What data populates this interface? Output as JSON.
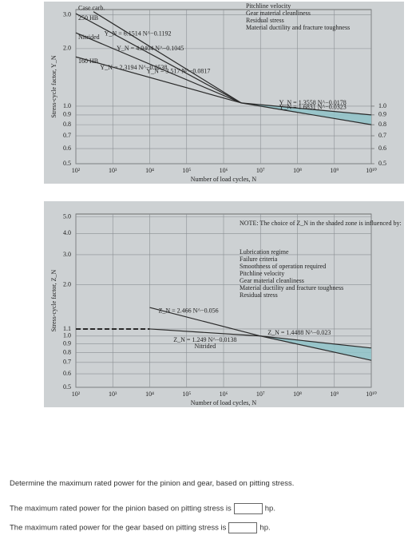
{
  "chart_data": [
    {
      "type": "line",
      "x_label": "Number of load cycles, N",
      "y_label": "Stress-cycle factor, Y_N",
      "xscale": "log",
      "yscale": "log",
      "grid": true,
      "xlim": [
        100,
        10000000000
      ],
      "ylim": [
        0.5,
        3.2
      ],
      "xticks": [
        {
          "value": 100,
          "label": "10²"
        },
        {
          "value": 1000,
          "label": "10³"
        },
        {
          "value": 10000,
          "label": "10⁴"
        },
        {
          "value": 100000,
          "label": "10⁵"
        },
        {
          "value": 1000000,
          "label": "10⁶"
        },
        {
          "value": 10000000,
          "label": "10⁷"
        },
        {
          "value": 100000000,
          "label": "10⁸"
        },
        {
          "value": 1000000000,
          "label": "10⁹"
        },
        {
          "value": 10000000000,
          "label": "10¹⁰"
        }
      ],
      "yticks": [
        0.5,
        0.6,
        0.7,
        0.8,
        0.9,
        {
          "value": 1,
          "label": "1.0"
        },
        {
          "value": 2,
          "label": "2.0"
        },
        {
          "value": 3,
          "label": "3.0"
        }
      ],
      "y2lim": [
        0.5,
        3.2
      ],
      "y2ticks": [
        0.5,
        0.6,
        0.7,
        0.8,
        0.9,
        {
          "value": 1,
          "label": "1.0"
        }
      ],
      "series": [
        {
          "name": "Y_N = 6.1514 N^−0.1192",
          "material": "Case carb.",
          "color": "#2a2a2a",
          "x": [
            300,
            3000000
          ],
          "values": [
            3.12,
            1.04
          ]
        },
        {
          "name": "Y_N = 4.9404 N^−0.1045",
          "material": "250 HB",
          "color": "#2a2a2a",
          "x": [
            100,
            3000000
          ],
          "values": [
            3.05,
            1.04
          ]
        },
        {
          "name": "Y_N = 3.517 N^−0.0817",
          "material": "Nitrided",
          "color": "#2a2a2a",
          "x": [
            100,
            3000000
          ],
          "values": [
            2.42,
            1.04
          ]
        },
        {
          "name": "Y_N = 2.3194 N^−0.0538",
          "material": "160 HB",
          "color": "#2a2a2a",
          "x": [
            100,
            3000000
          ],
          "values": [
            1.81,
            1.04
          ]
        },
        {
          "name": "Y_N = 1.3558 N^−0.0178",
          "color": "#2a2a2a",
          "x": [
            3000000,
            10000000000
          ],
          "values": [
            1.04,
            0.9
          ]
        },
        {
          "name": "Y_N = 1.6831 N^−0.0323",
          "color": "#2a2a2a",
          "x": [
            3000000,
            10000000000
          ],
          "values": [
            1.04,
            0.8
          ]
        }
      ],
      "shaded_between": [
        4,
        5
      ],
      "shade_color": "#8fc3c8",
      "notes": [
        "Pitchline velocity",
        "Gear material cleanliness",
        "Residual stress",
        "Material ductility and fracture toughness"
      ]
    },
    {
      "type": "line",
      "x_label": "Number of load cycles, N",
      "y_label": "Stress-cycle factor, Z_N",
      "xscale": "log",
      "yscale": "log",
      "grid": true,
      "xlim": [
        100,
        10000000000
      ],
      "ylim": [
        0.5,
        5.2
      ],
      "xticks": [
        {
          "value": 100,
          "label": "10²"
        },
        {
          "value": 1000,
          "label": "10³"
        },
        {
          "value": 10000,
          "label": "10⁴"
        },
        {
          "value": 100000,
          "label": "10⁵"
        },
        {
          "value": 1000000,
          "label": "10⁶"
        },
        {
          "value": 10000000,
          "label": "10⁷"
        },
        {
          "value": 100000000,
          "label": "10⁸"
        },
        {
          "value": 1000000000,
          "label": "10⁹"
        },
        {
          "value": 10000000000,
          "label": "10¹⁰"
        }
      ],
      "yticks": [
        0.5,
        0.6,
        0.7,
        0.8,
        0.9,
        {
          "value": 1,
          "label": "1.0"
        },
        1.1,
        {
          "value": 2,
          "label": "2.0"
        },
        {
          "value": 3,
          "label": "3.0"
        },
        {
          "value": 4,
          "label": "4.0"
        },
        {
          "value": 5,
          "label": "5.0"
        }
      ],
      "series": [
        {
          "name": "Z_N = 2.466 N^−0.056",
          "color": "#2a2a2a",
          "x": [
            10000,
            10000000
          ],
          "values": [
            1.47,
            1.0
          ]
        },
        {
          "name": "Z_N = 1.249 N^−0.0138",
          "material": "Nitrided",
          "color": "#2a2a2a",
          "x": [
            10000,
            10000000
          ],
          "values": [
            1.1,
            1.0
          ]
        },
        {
          "name": "Z_N = 1.4488 N^−0.023",
          "color": "#2a2a2a",
          "x": [
            10000000,
            10000000000
          ],
          "values": [
            1.0,
            0.85
          ]
        },
        {
          "color": "#2a2a2a",
          "x": [
            10000000,
            10000000000
          ],
          "values": [
            1.0,
            0.72
          ]
        },
        {
          "color": "#2a2a2a",
          "dashed": true,
          "x": [
            100,
            10000
          ],
          "values": [
            1.1,
            1.1
          ]
        }
      ],
      "shaded_between": [
        2,
        3
      ],
      "shade_color": "#8fc3c8",
      "note": "NOTE: The choice of Z_N in the shaded zone is influenced by:",
      "notes": [
        "Lubrication regime",
        "Failure criteria",
        "Smoothness of operation required",
        "Pitchline velocity",
        "Gear material cleanliness",
        "Material ductility and fracture toughness",
        "Residual stress"
      ]
    }
  ],
  "question": {
    "prompt": "Determine the maximum rated power for the pinion and gear, based on pitting stress.",
    "lines": [
      {
        "text": "The maximum rated power for the pinion based on pitting stress is",
        "unit": "hp."
      },
      {
        "text": "The maximum rated power for the gear based on pitting stress is",
        "unit": "hp."
      }
    ]
  }
}
